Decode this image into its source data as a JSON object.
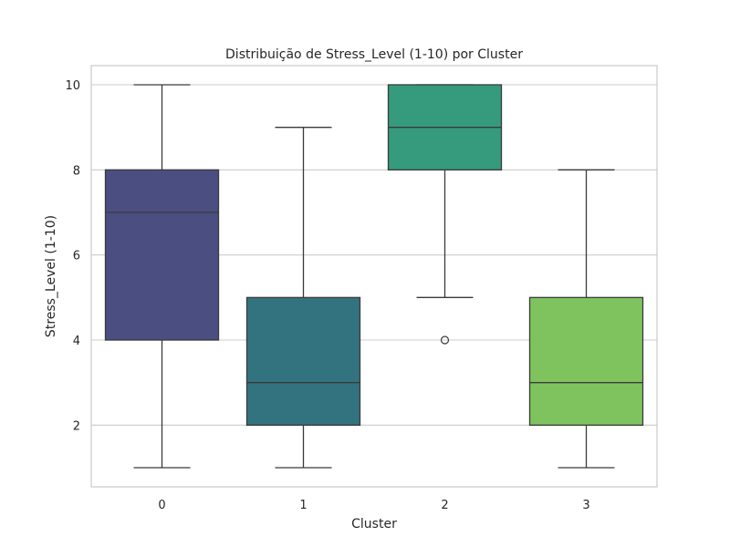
{
  "chart_data": {
    "type": "box",
    "title": "Distribuição de Stress_Level (1-10) por Cluster",
    "xlabel": "Cluster",
    "ylabel": "Stress_Level (1-10)",
    "ylim": [
      0.55,
      10.45
    ],
    "yticks": [
      2,
      4,
      6,
      8,
      10
    ],
    "grid": "horizontal",
    "legend": "none",
    "categories": [
      "0",
      "1",
      "2",
      "3"
    ],
    "boxes": [
      {
        "category": "0",
        "whisker_low": 1,
        "q1": 4,
        "median": 7,
        "q3": 8,
        "whisker_high": 10,
        "outliers": [],
        "color": "#4a4e81"
      },
      {
        "category": "1",
        "whisker_low": 1,
        "q1": 2,
        "median": 3,
        "q3": 5,
        "whisker_high": 9,
        "outliers": [],
        "color": "#337380"
      },
      {
        "category": "2",
        "whisker_low": 5,
        "q1": 8,
        "median": 9,
        "q3": 10,
        "whisker_high": 10,
        "outliers": [
          4
        ],
        "color": "#369b7c"
      },
      {
        "category": "3",
        "whisker_low": 1,
        "q1": 2,
        "median": 3,
        "q3": 5,
        "whisker_high": 8,
        "outliers": [],
        "color": "#7fc35f"
      }
    ]
  }
}
